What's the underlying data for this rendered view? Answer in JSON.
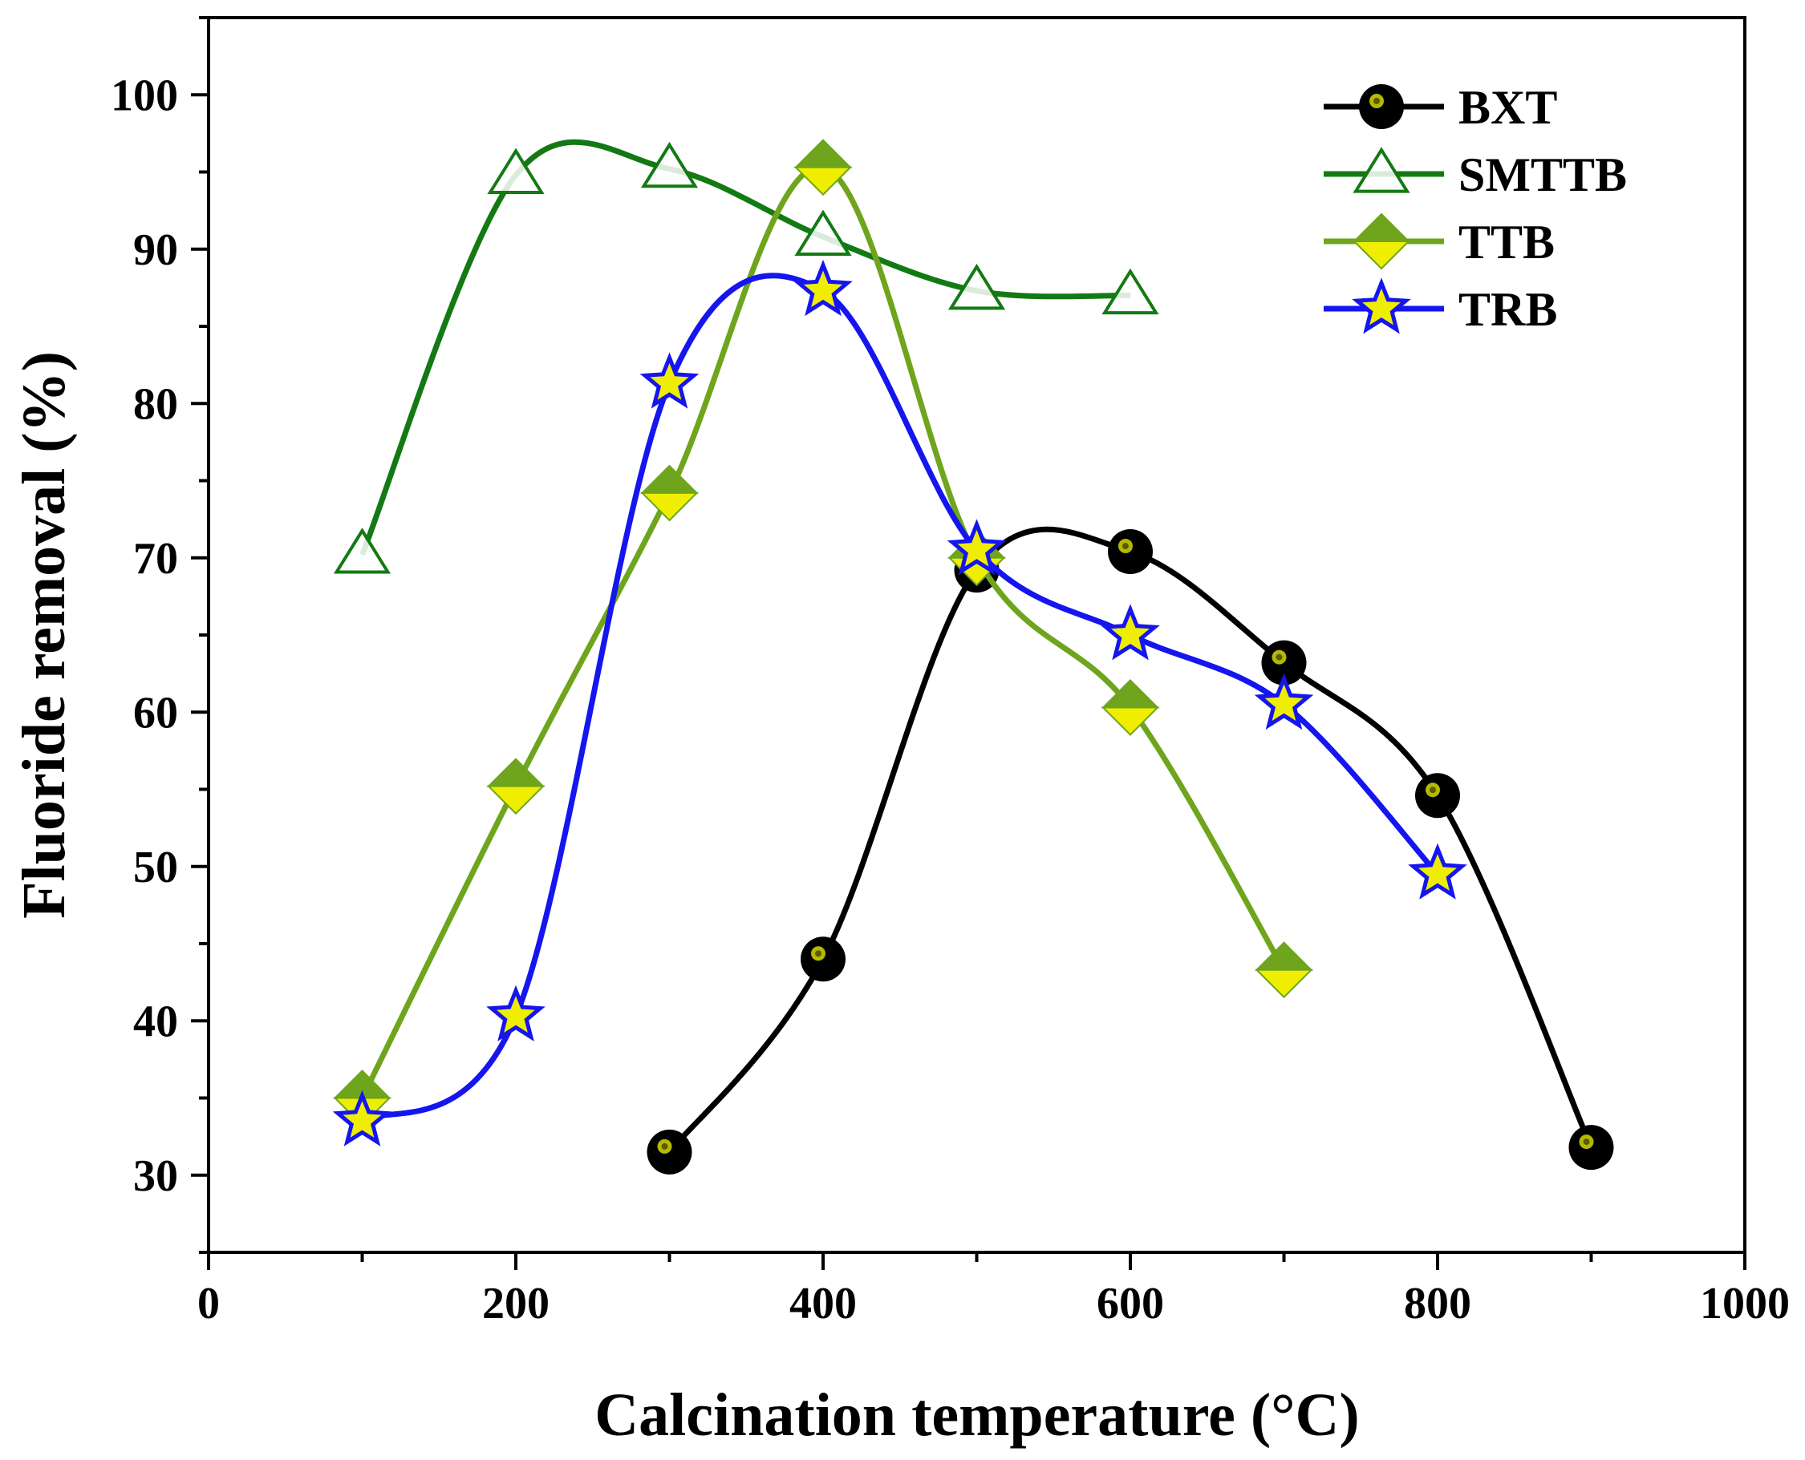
{
  "chart_data": {
    "type": "line",
    "xlabel": "Calcination temperature (°C)",
    "ylabel": "Fluoride removal (%)",
    "xlim": [
      0,
      1000
    ],
    "ylim": [
      25,
      105
    ],
    "xticks": [
      0,
      200,
      400,
      600,
      800,
      1000
    ],
    "yticks": [
      30,
      40,
      50,
      60,
      70,
      80,
      90,
      100
    ],
    "x_tick_labels": [
      "0",
      "200",
      "400",
      "600",
      "800",
      "1000"
    ],
    "y_tick_labels": [
      "30",
      "40",
      "50",
      "60",
      "70",
      "80",
      "90",
      "100"
    ],
    "grid": false,
    "legend_position": "top-right",
    "series": [
      {
        "name": "BXT",
        "marker": "circle",
        "line_color": "#000000",
        "marker_fill": "#000000",
        "marker_inner": "#b5b800",
        "points": [
          [
            300,
            31.5
          ],
          [
            400,
            44.0
          ],
          [
            500,
            69.2
          ],
          [
            600,
            70.4
          ],
          [
            700,
            63.2
          ],
          [
            800,
            54.6
          ],
          [
            900,
            31.8
          ]
        ]
      },
      {
        "name": "SMTTB",
        "marker": "triangle-open",
        "line_color": "#137a13",
        "marker_fill": "#137a13",
        "points": [
          [
            100,
            70.2
          ],
          [
            200,
            94.8
          ],
          [
            300,
            95.2
          ],
          [
            400,
            90.8
          ],
          [
            500,
            87.3
          ],
          [
            600,
            87.0
          ]
        ]
      },
      {
        "name": "TTB",
        "marker": "diamond-half",
        "line_color": "#6ea51d",
        "marker_fill": "#6ea51d",
        "marker_inner": "#f0ee00",
        "points": [
          [
            100,
            35.0
          ],
          [
            200,
            55.2
          ],
          [
            300,
            74.2
          ],
          [
            400,
            95.3
          ],
          [
            500,
            70.0
          ],
          [
            600,
            60.3
          ],
          [
            700,
            43.3
          ]
        ]
      },
      {
        "name": "TRB",
        "marker": "star",
        "line_color": "#1515f0",
        "marker_fill": "#f0ee00",
        "points": [
          [
            100,
            33.5
          ],
          [
            200,
            40.3
          ],
          [
            300,
            81.3
          ],
          [
            400,
            87.3
          ],
          [
            500,
            70.5
          ],
          [
            600,
            65.0
          ],
          [
            700,
            60.5
          ],
          [
            800,
            49.5
          ]
        ]
      }
    ]
  }
}
